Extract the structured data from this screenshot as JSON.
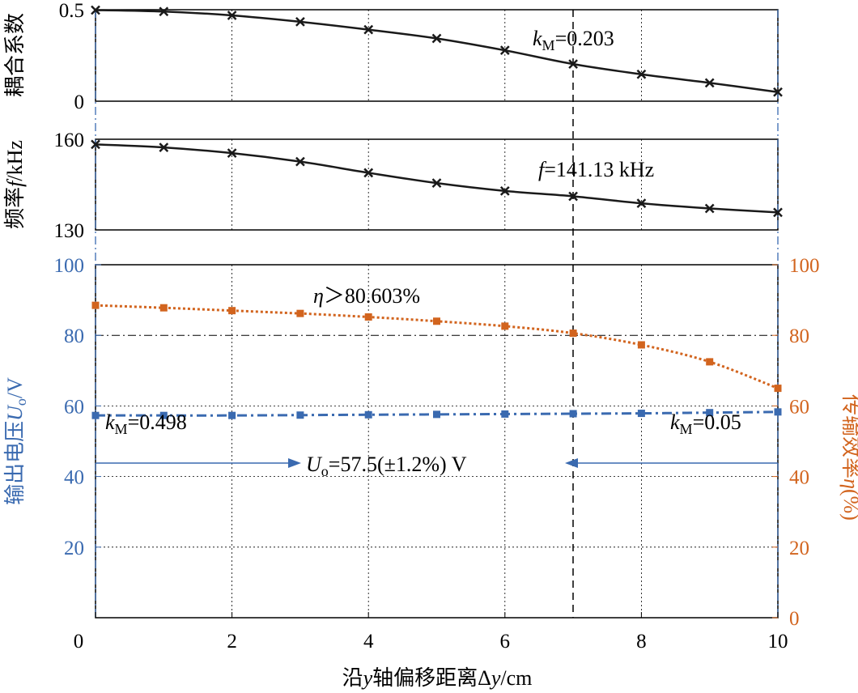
{
  "chart_data": [
    {
      "id": "coupling",
      "type": "line",
      "ylabel": "耦合系数",
      "ylim": [
        0,
        0.5
      ],
      "yticks": [
        0,
        0.5
      ],
      "ytick_labels": [
        "0",
        "0.5"
      ],
      "x": [
        0,
        1,
        2,
        3,
        4,
        5,
        6,
        7,
        8,
        9,
        10
      ],
      "series": [
        {
          "values": [
            0.498,
            0.49,
            0.469,
            0.434,
            0.391,
            0.343,
            0.278,
            0.203,
            0.147,
            0.1,
            0.05
          ],
          "color": "#1a1a1a",
          "marker": "x"
        }
      ],
      "annotation": {
        "text_prefix": "k",
        "text_sub": "M",
        "text_suffix": "=0.203"
      }
    },
    {
      "id": "frequency",
      "type": "line",
      "ylabel": "频率f/kHz",
      "ylim": [
        130,
        160
      ],
      "yticks": [
        130,
        160
      ],
      "ytick_labels": [
        "130",
        "160"
      ],
      "x": [
        0,
        1,
        2,
        3,
        4,
        5,
        6,
        7,
        8,
        9,
        10
      ],
      "series": [
        {
          "values": [
            158.3,
            157.3,
            155.4,
            152.6,
            148.9,
            145.5,
            142.9,
            141.13,
            138.8,
            137.1,
            135.8
          ],
          "color": "#1a1a1a",
          "marker": "x"
        }
      ],
      "annotation": {
        "text": "f = 141.13 kHz"
      }
    },
    {
      "id": "voltage-efficiency",
      "type": "line",
      "xlabel": "沿y轴偏移距离Δy/cm",
      "x": [
        0,
        1,
        2,
        3,
        4,
        5,
        6,
        7,
        8,
        9,
        10
      ],
      "xlim": [
        0,
        10
      ],
      "xticks": [
        0,
        2,
        4,
        6,
        8,
        10
      ],
      "xtick_labels": [
        "0",
        "2",
        "4",
        "6",
        "8",
        "10"
      ],
      "ylabel_left": "输出电压Uo/V",
      "ylabel_right": "传输效率η(%)",
      "ylim_left": [
        0,
        100
      ],
      "ylim_right": [
        0,
        100
      ],
      "yticks_left_labels": [
        "20",
        "40",
        "60",
        "80",
        "100"
      ],
      "yticks_right_labels": [
        "0",
        "20",
        "40",
        "60",
        "80",
        "100"
      ],
      "series": [
        {
          "axis": "left",
          "values": [
            57.3,
            57.3,
            57.3,
            57.4,
            57.5,
            57.6,
            57.7,
            57.8,
            57.9,
            58.1,
            58.3
          ],
          "color": "#3a6ab0",
          "marker": "square",
          "style": "dashdot"
        },
        {
          "axis": "right",
          "values": [
            88.5,
            87.8,
            87.0,
            86.2,
            85.2,
            84.0,
            82.6,
            80.603,
            77.3,
            72.5,
            65.0
          ],
          "color": "#d2641e",
          "marker": "square",
          "style": "dotted"
        }
      ],
      "annotations": {
        "eta": "η＞80.603%",
        "km_left_prefix": "k",
        "km_left_sub": "M",
        "km_left_suffix": "=0.498",
        "km_right_prefix": "k",
        "km_right_sub": "M",
        "km_right_suffix": "=0.05",
        "uo_prefix": "U",
        "uo_sub": "o",
        "uo_suffix": "=57.5(±1.2%) V"
      }
    }
  ]
}
